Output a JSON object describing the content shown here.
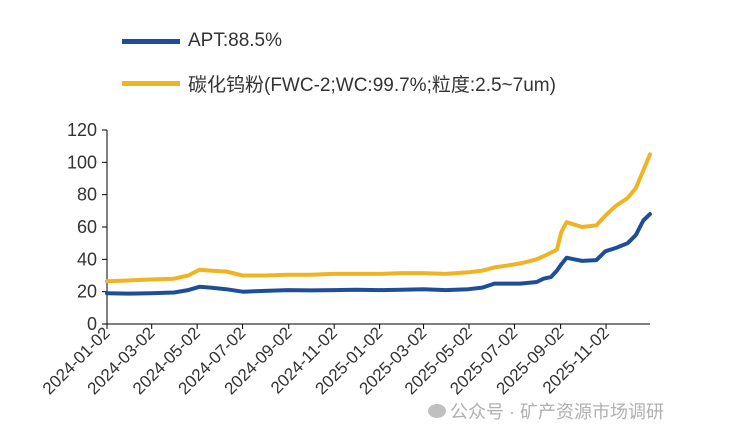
{
  "chart_data": {
    "type": "line",
    "title": "",
    "xlabel": "",
    "ylabel": "",
    "ylim": [
      0,
      120
    ],
    "yticks": [
      0,
      20,
      40,
      60,
      80,
      100,
      120
    ],
    "xlim": [
      "2024-01-02",
      "2025-12-31"
    ],
    "xtick_labels": [
      "2024-01-02",
      "2024-03-02",
      "2024-05-02",
      "2024-07-02",
      "2024-09-02",
      "2024-11-02",
      "2025-01-02",
      "2025-03-02",
      "2025-05-02",
      "2025-07-02",
      "2025-09-02",
      "2025-11-02"
    ],
    "grid": false,
    "legend_position": "top-left",
    "series": [
      {
        "name": "APT:88.5%",
        "color": "#1f4e99",
        "points": [
          [
            "2024-01-02",
            19
          ],
          [
            "2024-02-01",
            18.8
          ],
          [
            "2024-03-01",
            19
          ],
          [
            "2024-04-01",
            19.5
          ],
          [
            "2024-04-20",
            21
          ],
          [
            "2024-05-05",
            23
          ],
          [
            "2024-05-20",
            22.5
          ],
          [
            "2024-06-10",
            21.5
          ],
          [
            "2024-07-02",
            20
          ],
          [
            "2024-08-01",
            20.5
          ],
          [
            "2024-09-01",
            21
          ],
          [
            "2024-10-01",
            20.8
          ],
          [
            "2024-11-01",
            21
          ],
          [
            "2024-12-01",
            21.2
          ],
          [
            "2025-01-02",
            21
          ],
          [
            "2025-02-01",
            21.2
          ],
          [
            "2025-03-02",
            21.5
          ],
          [
            "2025-04-01",
            21
          ],
          [
            "2025-05-01",
            21.5
          ],
          [
            "2025-05-20",
            22.5
          ],
          [
            "2025-06-05",
            25
          ],
          [
            "2025-06-20",
            25
          ],
          [
            "2025-07-10",
            25
          ],
          [
            "2025-08-01",
            26
          ],
          [
            "2025-08-10",
            28
          ],
          [
            "2025-08-20",
            29
          ],
          [
            "2025-08-28",
            33
          ],
          [
            "2025-09-03",
            37
          ],
          [
            "2025-09-10",
            41
          ],
          [
            "2025-09-20",
            40
          ],
          [
            "2025-10-01",
            39
          ],
          [
            "2025-10-20",
            39.5
          ],
          [
            "2025-11-01",
            45
          ],
          [
            "2025-11-15",
            47
          ],
          [
            "2025-12-01",
            50
          ],
          [
            "2025-12-12",
            55
          ],
          [
            "2025-12-22",
            64
          ],
          [
            "2025-12-31",
            68
          ]
        ]
      },
      {
        "name": "碳化钨粉(FWC-2;WC:99.7%;粒度:2.5~7um)",
        "color": "#f0b323",
        "points": [
          [
            "2024-01-02",
            26.5
          ],
          [
            "2024-02-01",
            27
          ],
          [
            "2024-03-01",
            27.5
          ],
          [
            "2024-04-01",
            28
          ],
          [
            "2024-04-20",
            30
          ],
          [
            "2024-05-05",
            33.5
          ],
          [
            "2024-05-20",
            33
          ],
          [
            "2024-06-10",
            32.5
          ],
          [
            "2024-07-02",
            30
          ],
          [
            "2024-08-01",
            30
          ],
          [
            "2024-09-01",
            30.5
          ],
          [
            "2024-10-01",
            30.5
          ],
          [
            "2024-11-01",
            31
          ],
          [
            "2024-12-01",
            31
          ],
          [
            "2025-01-02",
            31
          ],
          [
            "2025-02-01",
            31.5
          ],
          [
            "2025-03-02",
            31.5
          ],
          [
            "2025-04-01",
            31
          ],
          [
            "2025-05-01",
            32
          ],
          [
            "2025-05-20",
            33
          ],
          [
            "2025-06-05",
            35
          ],
          [
            "2025-06-20",
            36
          ],
          [
            "2025-07-10",
            37.5
          ],
          [
            "2025-08-01",
            40
          ],
          [
            "2025-08-15",
            43
          ],
          [
            "2025-08-28",
            46
          ],
          [
            "2025-09-03",
            57
          ],
          [
            "2025-09-10",
            63
          ],
          [
            "2025-09-17",
            62
          ],
          [
            "2025-10-01",
            60
          ],
          [
            "2025-10-20",
            61
          ],
          [
            "2025-11-01",
            67
          ],
          [
            "2025-11-15",
            73
          ],
          [
            "2025-12-01",
            78
          ],
          [
            "2025-12-12",
            84
          ],
          [
            "2025-12-22",
            95
          ],
          [
            "2025-12-31",
            105
          ]
        ]
      }
    ]
  },
  "watermark": "公众号 · 矿产资源市场调研"
}
